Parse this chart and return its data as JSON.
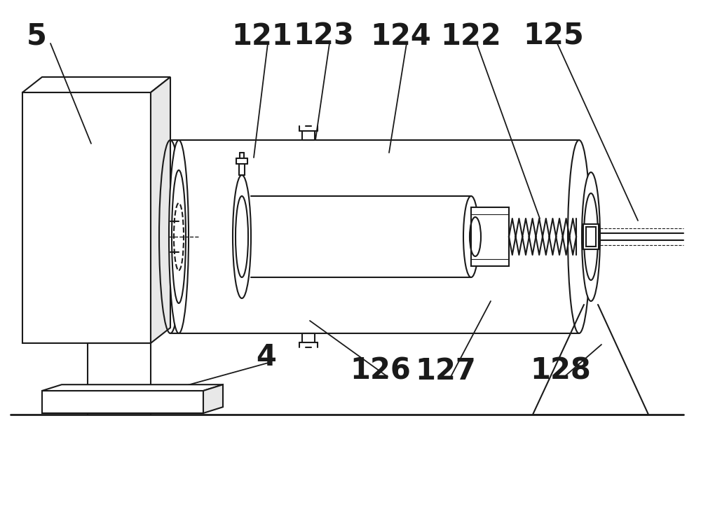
{
  "bg_color": "#ffffff",
  "line_color": "#1a1a1a",
  "lw": 1.5,
  "fig_width": 10.0,
  "fig_height": 7.24,
  "label_fontsize": 30
}
